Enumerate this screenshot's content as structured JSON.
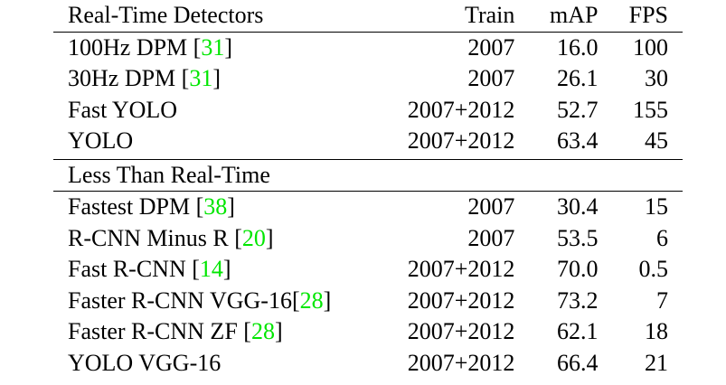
{
  "table": {
    "header": {
      "method": "Real-Time Detectors",
      "train": "Train",
      "map": "mAP",
      "fps": "FPS"
    },
    "realtime_rows": [
      {
        "method": "100Hz DPM ",
        "ref": "31",
        "ref_suffix": "]",
        "ref_prefix": "[",
        "train": "2007",
        "map": "16.0",
        "fps": "100",
        "map_bold": false,
        "fps_bold": false
      },
      {
        "method": "30Hz DPM ",
        "ref": "31",
        "ref_suffix": "]",
        "ref_prefix": "[",
        "train": "2007",
        "map": "26.1",
        "fps": "30",
        "map_bold": false,
        "fps_bold": false
      },
      {
        "method": "Fast YOLO",
        "ref": "",
        "ref_suffix": "",
        "ref_prefix": "",
        "train": "2007+2012",
        "map": "52.7",
        "fps": "155",
        "map_bold": false,
        "fps_bold": true
      },
      {
        "method": "YOLO",
        "ref": "",
        "ref_suffix": "",
        "ref_prefix": "",
        "train": "2007+2012",
        "map": "63.4",
        "fps": "45",
        "map_bold": true,
        "fps_bold": false
      }
    ],
    "section2_title": "Less Than Real-Time",
    "slow_rows": [
      {
        "method": "Fastest DPM ",
        "ref": "38",
        "ref_suffix": "]",
        "ref_prefix": "[",
        "train": "2007",
        "map": "30.4",
        "fps": "15",
        "map_bold": false,
        "fps_bold": false
      },
      {
        "method": "R-CNN Minus R ",
        "ref": "20",
        "ref_suffix": "]",
        "ref_prefix": "[",
        "train": "2007",
        "map": "53.5",
        "fps": "6",
        "map_bold": false,
        "fps_bold": false
      },
      {
        "method": "Fast R-CNN ",
        "ref": "14",
        "ref_suffix": "]",
        "ref_prefix": "[",
        "train": "2007+2012",
        "map": "70.0",
        "fps": "0.5",
        "map_bold": false,
        "fps_bold": false
      },
      {
        "method": "Faster R-CNN VGG-16",
        "ref": "28",
        "ref_suffix": "]",
        "ref_prefix": "[",
        "train": "2007+2012",
        "map": "73.2",
        "fps": "7",
        "map_bold": false,
        "fps_bold": false
      },
      {
        "method": "Faster R-CNN ZF ",
        "ref": "28",
        "ref_suffix": "]",
        "ref_prefix": "[",
        "train": "2007+2012",
        "map": "62.1",
        "fps": "18",
        "map_bold": false,
        "fps_bold": false
      },
      {
        "method": "YOLO VGG-16",
        "ref": "",
        "ref_suffix": "",
        "ref_prefix": "",
        "train": "2007+2012",
        "map": "66.4",
        "fps": "21",
        "map_bold": false,
        "fps_bold": false
      }
    ],
    "colors": {
      "citation": "#00e600",
      "text": "#000000",
      "rules": "#000000"
    }
  }
}
